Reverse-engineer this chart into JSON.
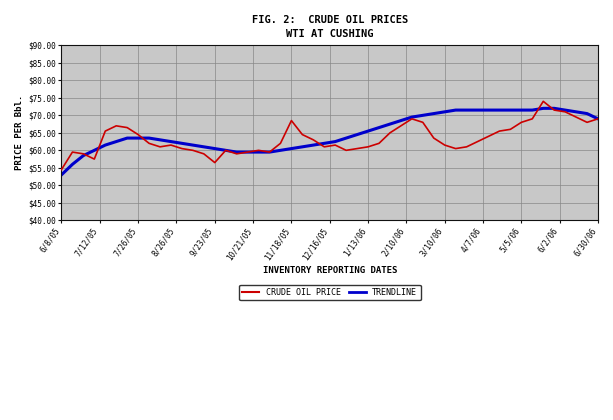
{
  "title_line1": "FIG. 2:  CRUDE OIL PRICES",
  "title_line2": "WTI AT CUSHING",
  "xlabel": "INVENTORY REPORTING DATES",
  "ylabel": "PRICE PER Bbl.",
  "ylim": [
    40,
    90
  ],
  "yticks": [
    40,
    45,
    50,
    55,
    60,
    65,
    70,
    75,
    80,
    85,
    90
  ],
  "ytick_labels": [
    "$40.00",
    "$45.00",
    "$50.00",
    "$55.00",
    "$60.00",
    "$65.00",
    "$70.00",
    "$75.00",
    "$80.00",
    "$85.00",
    "$90.00"
  ],
  "x_labels": [
    "6/8/05",
    "7/12/05",
    "7/26/05",
    "8/26/05",
    "9/23/05",
    "10/21/05",
    "11/18/05",
    "12/16/05",
    "1/13/06",
    "2/10/06",
    "3/10/06",
    "4/7/06",
    "5/5/06",
    "6/2/06",
    "6/30/06"
  ],
  "crude_prices": [
    54.5,
    59.5,
    59.0,
    57.5,
    65.5,
    67.0,
    66.5,
    64.5,
    62.0,
    61.0,
    61.5,
    60.5,
    60.0,
    59.0,
    56.5,
    60.0,
    59.0,
    59.5,
    60.0,
    59.5,
    62.0,
    68.5,
    64.5,
    63.0,
    61.0,
    61.5,
    60.0,
    60.5,
    61.0,
    62.0,
    65.0,
    67.0,
    69.0,
    68.0,
    63.5,
    61.5,
    60.5,
    61.0,
    62.5,
    64.0,
    65.5,
    66.0,
    68.0,
    69.0,
    74.0,
    71.5,
    71.0,
    69.5,
    68.0,
    69.0
  ],
  "trendline": [
    53.0,
    56.0,
    58.5,
    60.0,
    61.5,
    62.5,
    63.5,
    63.5,
    63.5,
    63.0,
    62.5,
    62.0,
    61.5,
    61.0,
    60.5,
    60.0,
    59.5,
    59.5,
    59.5,
    59.5,
    60.0,
    60.5,
    61.0,
    61.5,
    62.0,
    62.5,
    63.5,
    64.5,
    65.5,
    66.5,
    67.5,
    68.5,
    69.5,
    70.0,
    70.5,
    71.0,
    71.5,
    71.5,
    71.5,
    71.5,
    71.5,
    71.5,
    71.5,
    71.5,
    72.0,
    72.0,
    71.5,
    71.0,
    70.5,
    69.0
  ],
  "crude_color": "#cc0000",
  "trend_color": "#0000cc",
  "fig_bg": "#ffffff",
  "plot_bg": "#c8c8c8",
  "grid_color": "#888888",
  "legend_crude": "CRUDE OIL PRICE",
  "legend_trend": "TRENDLINE",
  "title_fontsize": 7.5,
  "axis_label_fontsize": 6.5,
  "tick_fontsize": 5.5
}
